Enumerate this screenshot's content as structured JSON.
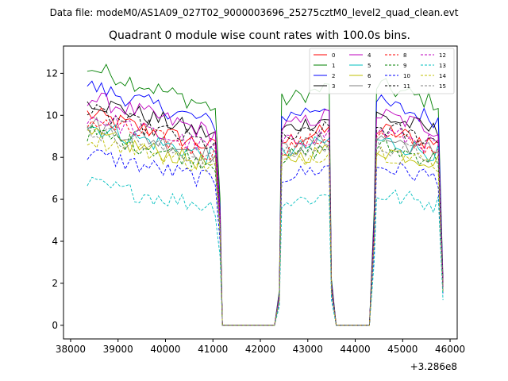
{
  "header": {
    "data_file": "Data file: modeM0/AS1A09_027T02_9000003696_25275cztM0_level2_quad_clean.evt"
  },
  "chart_data": {
    "type": "line",
    "title": "Quadrant 0 module wise count rates with 100.0s bins.",
    "xlabel": "",
    "ylabel": "",
    "x_offset_label": "+3.286e8",
    "xlim": [
      37850,
      46150
    ],
    "ylim": [
      -0.65,
      13.3
    ],
    "xticks": [
      38000,
      39000,
      40000,
      41000,
      42000,
      43000,
      44000,
      45000,
      46000
    ],
    "xtick_labels": [
      "38000",
      "39000",
      "40000",
      "41000",
      "42000",
      "43000",
      "44000",
      "45000",
      "46000"
    ],
    "yticks": [
      0,
      2,
      4,
      6,
      8,
      10,
      12
    ],
    "ytick_labels": [
      "0",
      "2",
      "4",
      "6",
      "8",
      "10",
      "12"
    ],
    "legend_position": "top-right",
    "gap_start": 41200,
    "gap_end": 42300,
    "gap2_start": 43600,
    "gap2_end": 44300,
    "series": [
      {
        "name": "0",
        "color": "#ff0000",
        "dash": "solid",
        "level": 9.0
      },
      {
        "name": "1",
        "color": "#008000",
        "dash": "solid",
        "level": 11.0
      },
      {
        "name": "2",
        "color": "#0000ff",
        "dash": "solid",
        "level": 10.2
      },
      {
        "name": "3",
        "color": "#000000",
        "dash": "solid",
        "level": 9.6
      },
      {
        "name": "4",
        "color": "#bf00bf",
        "dash": "solid",
        "level": 9.7
      },
      {
        "name": "5",
        "color": "#00bfbf",
        "dash": "solid",
        "level": 8.5
      },
      {
        "name": "6",
        "color": "#bfbf00",
        "dash": "solid",
        "level": 8.1
      },
      {
        "name": "7",
        "color": "#808080",
        "dash": "solid",
        "level": 8.6
      },
      {
        "name": "8",
        "color": "#ff0000",
        "dash": "dashed",
        "level": 8.7
      },
      {
        "name": "9",
        "color": "#008000",
        "dash": "dashed",
        "level": 8.2
      },
      {
        "name": "10",
        "color": "#0000ff",
        "dash": "dashed",
        "level": 7.3
      },
      {
        "name": "11",
        "color": "#000000",
        "dash": "dashed",
        "level": 9.1
      },
      {
        "name": "12",
        "color": "#bf00bf",
        "dash": "dashed",
        "level": 8.9
      },
      {
        "name": "13",
        "color": "#00bfbf",
        "dash": "dashed",
        "level": 6.0
      },
      {
        "name": "14",
        "color": "#bfbf00",
        "dash": "dashed",
        "level": 8.0
      },
      {
        "name": "15",
        "color": "#808080",
        "dash": "dashed",
        "level": 8.3
      }
    ]
  }
}
